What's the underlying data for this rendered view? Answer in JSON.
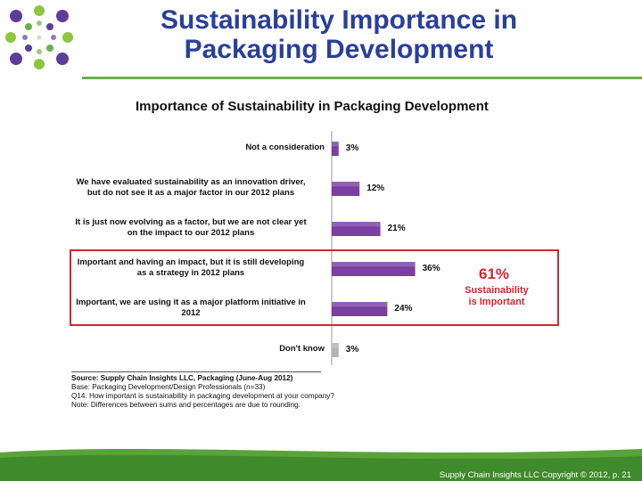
{
  "slide": {
    "title_line1": "Sustainability Importance in",
    "title_line2": "Packaging Development"
  },
  "colors": {
    "title": "#2a3f9a",
    "bar": "#7b3fa3",
    "bar_dont_know": "#b3b3b3",
    "highlight": "#d0272f",
    "accent_green": "#6ab04c"
  },
  "logo": {
    "icon": "dot-circle-logo-icon"
  },
  "chart_data": {
    "type": "bar",
    "orientation": "horizontal",
    "title": "Importance of Sustainability in Packaging Development",
    "categories": [
      "Not a consideration",
      "We have evaluated sustainability as an innovation driver, but do not see it as a major factor in our 2012 plans",
      "It is just now evolving as a factor, but we are not clear yet on the impact to our 2012 plans",
      "Important and having an impact, but it is still developing as a strategy in 2012 plans",
      "Important, we are using it as a major platform initiative in 2012",
      "Don't know"
    ],
    "label_lines": [
      [
        "Not a consideration"
      ],
      [
        "We have evaluated sustainability as an innovation driver,",
        "but do not see it as a major factor in our 2012 plans"
      ],
      [
        "It is just now evolving as a factor, but we are not clear yet",
        "on the impact to our 2012 plans"
      ],
      [
        "Important and having an impact, but it is still developing",
        "as a strategy in 2012 plans"
      ],
      [
        "Important, we are using it as a major platform initiative in",
        "2012"
      ],
      [
        "Don't know"
      ]
    ],
    "values": [
      3,
      12,
      21,
      36,
      24,
      3
    ],
    "value_labels": [
      "3%",
      "12%",
      "21%",
      "36%",
      "24%",
      "3%"
    ],
    "unit": "%",
    "highlighted_categories": [
      3,
      4
    ],
    "callout": {
      "value": "61%",
      "line1": "Sustainability",
      "line2": "is Important"
    }
  },
  "notes": {
    "source": "Source:  Supply Chain Insights LLC, Packaging (June-Aug 2012)",
    "base": "Base:  Packaging Development/Design Professionals (n=33)",
    "question": "Q14. How important is sustainability in packaging development at your company?",
    "note": "Note: Differences between sums and percentages are due to rounding."
  },
  "footer": {
    "text": "Supply Chain Insights LLC Copyright © 2012, p. 21"
  }
}
